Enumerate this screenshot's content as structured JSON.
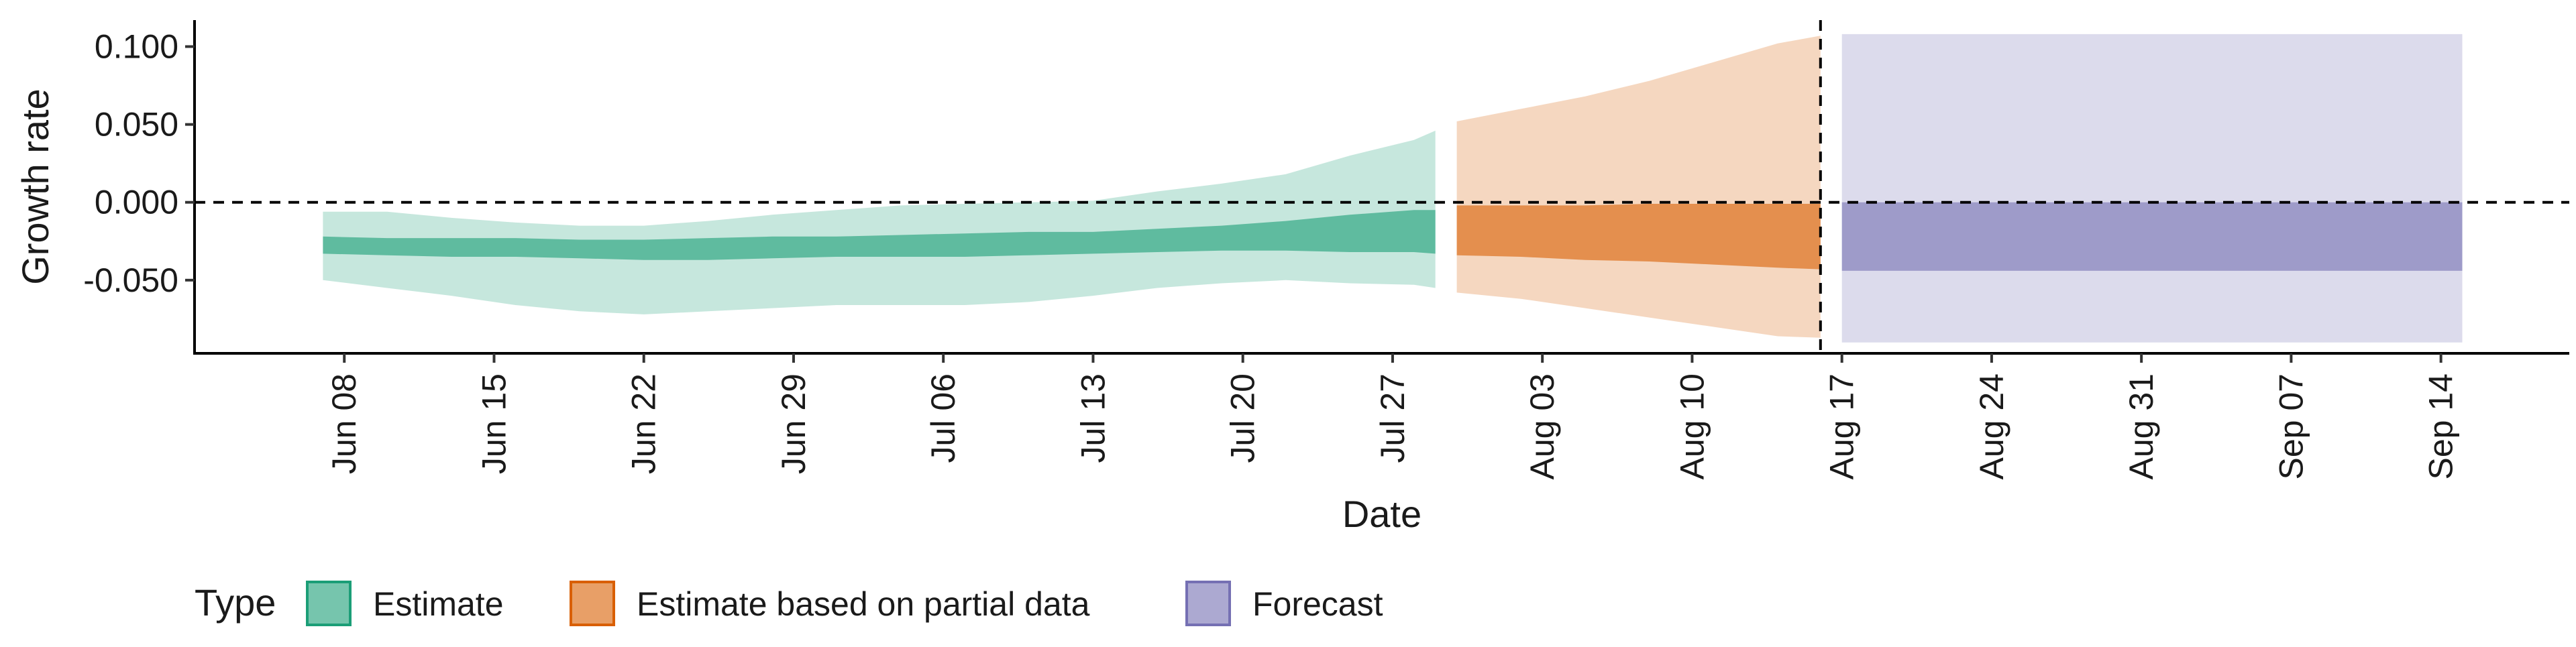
{
  "chart_data": {
    "type": "area",
    "xlabel": "Date",
    "ylabel": "Growth rate",
    "x_range": [
      "2020-06-01",
      "2020-09-20"
    ],
    "ylim": [
      -0.097,
      0.117
    ],
    "y_ticks": [
      0.1,
      0.05,
      0.0,
      -0.05
    ],
    "y_tick_labels": [
      "0.100",
      "0.050",
      "0.000",
      "-0.050"
    ],
    "x_ticks": [
      "2020-06-08",
      "2020-06-15",
      "2020-06-22",
      "2020-06-29",
      "2020-07-06",
      "2020-07-13",
      "2020-07-20",
      "2020-07-27",
      "2020-08-03",
      "2020-08-10",
      "2020-08-17",
      "2020-08-24",
      "2020-08-31",
      "2020-09-07",
      "2020-09-14"
    ],
    "x_tick_labels": [
      "Jun 08",
      "Jun 15",
      "Jun 22",
      "Jun 29",
      "Jul 06",
      "Jul 13",
      "Jul 20",
      "Jul 27",
      "Aug 03",
      "Aug 10",
      "Aug 17",
      "Aug 24",
      "Aug 31",
      "Sep 07",
      "Sep 14"
    ],
    "hline": 0.0,
    "vline": "2020-08-16",
    "grid": false,
    "legend": {
      "title": "Type",
      "position": "bottom-left",
      "entries": [
        {
          "label": "Estimate",
          "color": "#1b9e77"
        },
        {
          "label": "Estimate based on partial data",
          "color": "#d95f02"
        },
        {
          "label": "Forecast",
          "color": "#7570b3"
        }
      ]
    },
    "series": [
      {
        "name": "Estimate",
        "color": "#1b9e77",
        "points": [
          {
            "date": "2020-06-07",
            "lower90": -0.05,
            "upper90": -0.006,
            "lower50": -0.033,
            "upper50": -0.022
          },
          {
            "date": "2020-06-10",
            "lower90": -0.055,
            "upper90": -0.006,
            "lower50": -0.034,
            "upper50": -0.023
          },
          {
            "date": "2020-06-13",
            "lower90": -0.06,
            "upper90": -0.01,
            "lower50": -0.035,
            "upper50": -0.023
          },
          {
            "date": "2020-06-16",
            "lower90": -0.066,
            "upper90": -0.013,
            "lower50": -0.035,
            "upper50": -0.023
          },
          {
            "date": "2020-06-19",
            "lower90": -0.07,
            "upper90": -0.015,
            "lower50": -0.036,
            "upper50": -0.024
          },
          {
            "date": "2020-06-22",
            "lower90": -0.072,
            "upper90": -0.015,
            "lower50": -0.037,
            "upper50": -0.024
          },
          {
            "date": "2020-06-25",
            "lower90": -0.07,
            "upper90": -0.012,
            "lower50": -0.037,
            "upper50": -0.023
          },
          {
            "date": "2020-06-28",
            "lower90": -0.068,
            "upper90": -0.008,
            "lower50": -0.036,
            "upper50": -0.022
          },
          {
            "date": "2020-07-01",
            "lower90": -0.066,
            "upper90": -0.005,
            "lower50": -0.035,
            "upper50": -0.022
          },
          {
            "date": "2020-07-04",
            "lower90": -0.066,
            "upper90": -0.002,
            "lower50": -0.035,
            "upper50": -0.021
          },
          {
            "date": "2020-07-07",
            "lower90": -0.066,
            "upper90": -0.001,
            "lower50": -0.035,
            "upper50": -0.02
          },
          {
            "date": "2020-07-10",
            "lower90": -0.064,
            "upper90": 0.0,
            "lower50": -0.034,
            "upper50": -0.019
          },
          {
            "date": "2020-07-13",
            "lower90": -0.06,
            "upper90": 0.001,
            "lower50": -0.033,
            "upper50": -0.019
          },
          {
            "date": "2020-07-16",
            "lower90": -0.055,
            "upper90": 0.007,
            "lower50": -0.032,
            "upper50": -0.017
          },
          {
            "date": "2020-07-19",
            "lower90": -0.052,
            "upper90": 0.012,
            "lower50": -0.031,
            "upper50": -0.015
          },
          {
            "date": "2020-07-22",
            "lower90": -0.05,
            "upper90": 0.018,
            "lower50": -0.031,
            "upper50": -0.012
          },
          {
            "date": "2020-07-25",
            "lower90": -0.052,
            "upper90": 0.03,
            "lower50": -0.032,
            "upper50": -0.008
          },
          {
            "date": "2020-07-28",
            "lower90": -0.053,
            "upper90": 0.04,
            "lower50": -0.032,
            "upper50": -0.005
          },
          {
            "date": "2020-07-29",
            "lower90": -0.055,
            "upper90": 0.046,
            "lower50": -0.033,
            "upper50": -0.005
          }
        ]
      },
      {
        "name": "Estimate based on partial data",
        "color": "#d95f02",
        "points": [
          {
            "date": "2020-07-30",
            "lower90": -0.058,
            "upper90": 0.052,
            "lower50": -0.034,
            "upper50": -0.002
          },
          {
            "date": "2020-08-02",
            "lower90": -0.062,
            "upper90": 0.06,
            "lower50": -0.035,
            "upper50": -0.002
          },
          {
            "date": "2020-08-05",
            "lower90": -0.068,
            "upper90": 0.068,
            "lower50": -0.037,
            "upper50": -0.002
          },
          {
            "date": "2020-08-08",
            "lower90": -0.074,
            "upper90": 0.078,
            "lower50": -0.038,
            "upper50": -0.001
          },
          {
            "date": "2020-08-11",
            "lower90": -0.08,
            "upper90": 0.09,
            "lower50": -0.04,
            "upper50": -0.001
          },
          {
            "date": "2020-08-14",
            "lower90": -0.086,
            "upper90": 0.102,
            "lower50": -0.042,
            "upper50": -0.001
          },
          {
            "date": "2020-08-16",
            "lower90": -0.087,
            "upper90": 0.107,
            "lower50": -0.043,
            "upper50": -0.001
          }
        ]
      },
      {
        "name": "Forecast",
        "color": "#7570b3",
        "points": [
          {
            "date": "2020-08-17",
            "lower90": -0.09,
            "upper90": 0.108,
            "lower50": -0.044,
            "upper50": 0.0
          },
          {
            "date": "2020-09-15",
            "lower90": -0.09,
            "upper90": 0.108,
            "lower50": -0.044,
            "upper50": 0.0
          }
        ]
      }
    ]
  }
}
